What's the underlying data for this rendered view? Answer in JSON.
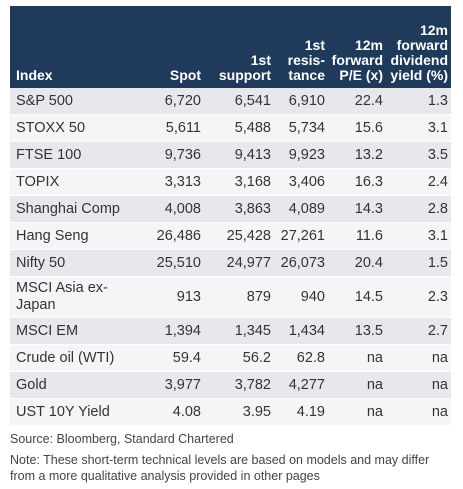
{
  "headers": [
    "Index",
    "Spot",
    "1st support",
    "1st resis- tance",
    "12m forward P/E (x)",
    "12m forward dividend yield (%)"
  ],
  "rows": [
    [
      "S&P 500",
      "6,720",
      "6,541",
      "6,910",
      "22.4",
      "1.3"
    ],
    [
      "STOXX 50",
      "5,611",
      "5,488",
      "5,734",
      "15.6",
      "3.1"
    ],
    [
      "FTSE 100",
      "9,736",
      "9,413",
      "9,923",
      "13.2",
      "3.5"
    ],
    [
      "TOPIX",
      "3,313",
      "3,168",
      "3,406",
      "16.3",
      "2.4"
    ],
    [
      "Shanghai Comp",
      "4,008",
      "3,863",
      "4,089",
      "14.3",
      "2.8"
    ],
    [
      "Hang Seng",
      "26,486",
      "25,428",
      "27,261",
      "11.6",
      "3.1"
    ],
    [
      "Nifty 50",
      "25,510",
      "24,977",
      "26,073",
      "20.4",
      "1.5"
    ],
    [
      "MSCI Asia ex-Japan",
      "913",
      "879",
      "940",
      "14.5",
      "2.3"
    ],
    [
      "MSCI EM",
      "1,394",
      "1,345",
      "1,434",
      "13.5",
      "2.7"
    ],
    [
      "Crude oil (WTI)",
      "59.4",
      "56.2",
      "62.8",
      "na",
      "na"
    ],
    [
      "Gold",
      "3,977",
      "3,782",
      "4,277",
      "na",
      "na"
    ],
    [
      "UST 10Y Yield",
      "4.08",
      "3.95",
      "4.19",
      "na",
      "na"
    ]
  ],
  "source": "Source: Bloomberg, Standard Chartered",
  "note": "Note: These short-term technical levels are based on models and may differ from a more qualitative analysis provided in other pages",
  "colors": {
    "header_bg": "#1f3a5b",
    "row_odd": "#e6e8eb",
    "row_even": "#f4f5f6"
  }
}
